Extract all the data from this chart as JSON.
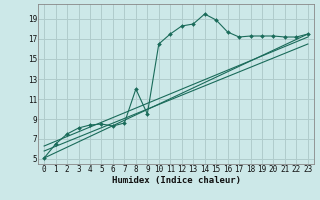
{
  "xlabel": "Humidex (Indice chaleur)",
  "bg_color": "#cce8e8",
  "grid_color": "#b0cccc",
  "line_color": "#1a6b5a",
  "spine_color": "#888888",
  "xlim": [
    -0.5,
    23.5
  ],
  "ylim": [
    4.5,
    20.5
  ],
  "xticks": [
    0,
    1,
    2,
    3,
    4,
    5,
    6,
    7,
    8,
    9,
    10,
    11,
    12,
    13,
    14,
    15,
    16,
    17,
    18,
    19,
    20,
    21,
    22,
    23
  ],
  "yticks": [
    5,
    7,
    9,
    11,
    13,
    15,
    17,
    19
  ],
  "main_x": [
    0,
    1,
    2,
    3,
    4,
    5,
    6,
    7,
    8,
    9,
    10,
    11,
    12,
    13,
    14,
    15,
    16,
    17,
    18,
    19,
    20,
    21,
    22,
    23
  ],
  "main_y": [
    5.1,
    6.5,
    7.5,
    8.1,
    8.4,
    8.5,
    8.3,
    8.6,
    12.0,
    9.5,
    16.5,
    17.5,
    18.3,
    18.5,
    19.5,
    18.9,
    17.7,
    17.2,
    17.3,
    17.3,
    17.3,
    17.2,
    17.2,
    17.5
  ],
  "line1_x": [
    0,
    23
  ],
  "line1_y": [
    5.1,
    17.5
  ],
  "line2_x": [
    0,
    23
  ],
  "line2_y": [
    5.8,
    16.5
  ],
  "line3_x": [
    0,
    23
  ],
  "line3_y": [
    6.3,
    17.2
  ],
  "tick_fontsize": 5.5,
  "xlabel_fontsize": 6.5
}
